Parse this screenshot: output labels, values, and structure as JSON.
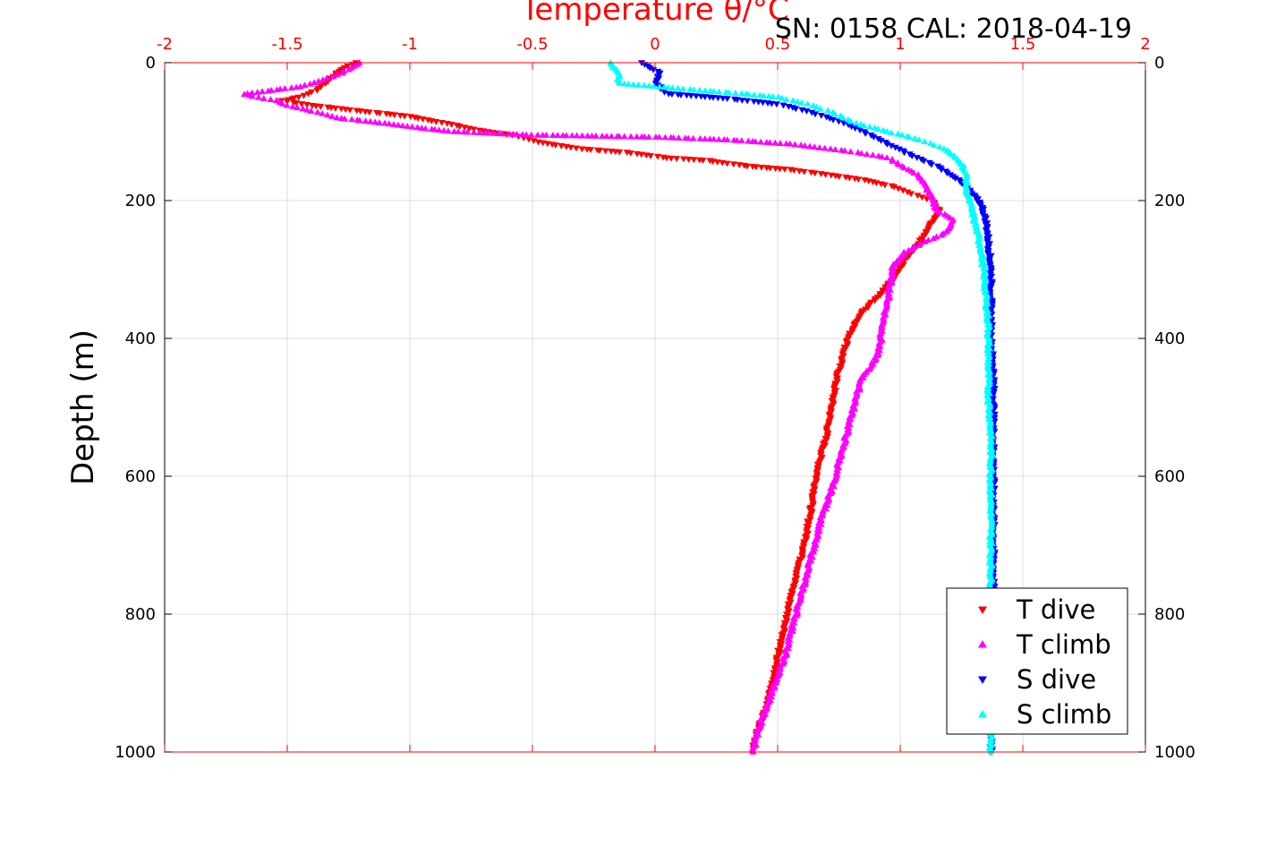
{
  "chart_data": {
    "type": "scatter",
    "title": "SN: 0158  CAL: 2018-04-19",
    "top_axis_label": "Temperature θ/°C",
    "ylabel": "Depth (m)",
    "xlim": [
      -2,
      2
    ],
    "ylim": [
      1000,
      0
    ],
    "x_ticks": [
      "-2",
      "-1.5",
      "-1",
      "-0.5",
      "0",
      "0.5",
      "1",
      "1.5",
      "2"
    ],
    "y_ticks": [
      "0",
      "200",
      "400",
      "600",
      "800",
      "1000"
    ],
    "y_ticks_right": [
      "0",
      "200",
      "400",
      "600",
      "800",
      "1000"
    ],
    "grid": true,
    "legend_position": "bottom-right",
    "colors": {
      "axis_top": "#ff0000",
      "axis_other": "#000000",
      "grid": "#dcdcdc"
    },
    "series": [
      {
        "name": "T dive",
        "color": "#ff0000",
        "marker": "triangle-down",
        "points": [
          [
            -1.22,
            0
          ],
          [
            -1.28,
            10
          ],
          [
            -1.33,
            25
          ],
          [
            -1.38,
            40
          ],
          [
            -1.45,
            50
          ],
          [
            -1.52,
            55
          ],
          [
            -1.4,
            62
          ],
          [
            -1.2,
            70
          ],
          [
            -1.0,
            78
          ],
          [
            -0.85,
            88
          ],
          [
            -0.72,
            98
          ],
          [
            -0.58,
            105
          ],
          [
            -0.48,
            115
          ],
          [
            -0.3,
            125
          ],
          [
            -0.12,
            130
          ],
          [
            0.05,
            138
          ],
          [
            0.22,
            142
          ],
          [
            0.38,
            150
          ],
          [
            0.55,
            155
          ],
          [
            0.7,
            162
          ],
          [
            0.85,
            170
          ],
          [
            0.98,
            180
          ],
          [
            1.05,
            190
          ],
          [
            1.13,
            200
          ],
          [
            1.16,
            215
          ],
          [
            1.12,
            235
          ],
          [
            1.08,
            260
          ],
          [
            1.02,
            285
          ],
          [
            0.98,
            310
          ],
          [
            0.92,
            335
          ],
          [
            0.85,
            360
          ],
          [
            0.8,
            390
          ],
          [
            0.77,
            420
          ],
          [
            0.74,
            460
          ],
          [
            0.72,
            500
          ],
          [
            0.7,
            540
          ],
          [
            0.67,
            580
          ],
          [
            0.65,
            620
          ],
          [
            0.63,
            660
          ],
          [
            0.61,
            700
          ],
          [
            0.58,
            740
          ],
          [
            0.55,
            780
          ],
          [
            0.53,
            820
          ],
          [
            0.5,
            860
          ],
          [
            0.48,
            900
          ],
          [
            0.45,
            940
          ],
          [
            0.42,
            970
          ],
          [
            0.4,
            995
          ]
        ]
      },
      {
        "name": "T climb",
        "color": "#ff00ff",
        "marker": "triangle-up",
        "points": [
          [
            -1.2,
            0
          ],
          [
            -1.28,
            15
          ],
          [
            -1.35,
            25
          ],
          [
            -1.45,
            35
          ],
          [
            -1.6,
            42
          ],
          [
            -1.68,
            46
          ],
          [
            -1.55,
            55
          ],
          [
            -1.5,
            62
          ],
          [
            -1.38,
            72
          ],
          [
            -1.3,
            80
          ],
          [
            -1.1,
            88
          ],
          [
            -0.95,
            95
          ],
          [
            -0.82,
            100
          ],
          [
            -0.5,
            105
          ],
          [
            0.0,
            108
          ],
          [
            0.3,
            112
          ],
          [
            0.55,
            118
          ],
          [
            0.78,
            128
          ],
          [
            0.95,
            138
          ],
          [
            1.08,
            165
          ],
          [
            1.12,
            190
          ],
          [
            1.15,
            215
          ],
          [
            1.22,
            228
          ],
          [
            1.18,
            248
          ],
          [
            1.1,
            260
          ],
          [
            1.02,
            275
          ],
          [
            0.97,
            295
          ],
          [
            0.96,
            320
          ],
          [
            0.95,
            345
          ],
          [
            0.93,
            375
          ],
          [
            0.92,
            405
          ],
          [
            0.9,
            430
          ],
          [
            0.84,
            460
          ],
          [
            0.81,
            500
          ],
          [
            0.78,
            540
          ],
          [
            0.75,
            580
          ],
          [
            0.72,
            620
          ],
          [
            0.68,
            660
          ],
          [
            0.65,
            700
          ],
          [
            0.62,
            740
          ],
          [
            0.59,
            780
          ],
          [
            0.56,
            820
          ],
          [
            0.53,
            860
          ],
          [
            0.49,
            900
          ],
          [
            0.45,
            940
          ],
          [
            0.42,
            970
          ],
          [
            0.4,
            1000
          ]
        ]
      },
      {
        "name": "S dive",
        "color": "#0000ff",
        "marker": "triangle-down",
        "points": [
          [
            -0.05,
            0
          ],
          [
            0.02,
            15
          ],
          [
            0.0,
            30
          ],
          [
            0.05,
            45
          ],
          [
            0.3,
            52
          ],
          [
            0.5,
            60
          ],
          [
            0.62,
            70
          ],
          [
            0.75,
            85
          ],
          [
            0.85,
            100
          ],
          [
            0.95,
            118
          ],
          [
            1.05,
            135
          ],
          [
            1.15,
            150
          ],
          [
            1.22,
            165
          ],
          [
            1.28,
            185
          ],
          [
            1.33,
            205
          ],
          [
            1.35,
            230
          ],
          [
            1.36,
            260
          ],
          [
            1.37,
            300
          ],
          [
            1.37,
            340
          ],
          [
            1.37,
            400
          ],
          [
            1.38,
            450
          ],
          [
            1.38,
            500
          ],
          [
            1.38,
            550
          ],
          [
            1.38,
            600
          ],
          [
            1.38,
            650
          ],
          [
            1.38,
            700
          ],
          [
            1.38,
            750
          ],
          [
            1.38,
            800
          ],
          [
            1.38,
            850
          ],
          [
            1.38,
            900
          ],
          [
            1.37,
            950
          ],
          [
            1.37,
            1000
          ]
        ]
      },
      {
        "name": "S climb",
        "color": "#00ffff",
        "marker": "triangle-up",
        "points": [
          [
            -0.18,
            0
          ],
          [
            -0.15,
            15
          ],
          [
            -0.15,
            30
          ],
          [
            0.18,
            40
          ],
          [
            0.35,
            45
          ],
          [
            0.5,
            50
          ],
          [
            0.62,
            60
          ],
          [
            0.72,
            72
          ],
          [
            0.82,
            88
          ],
          [
            0.95,
            100
          ],
          [
            1.08,
            112
          ],
          [
            1.18,
            125
          ],
          [
            1.25,
            145
          ],
          [
            1.27,
            165
          ],
          [
            1.27,
            185
          ],
          [
            1.29,
            210
          ],
          [
            1.31,
            240
          ],
          [
            1.33,
            270
          ],
          [
            1.34,
            300
          ],
          [
            1.35,
            340
          ],
          [
            1.36,
            380
          ],
          [
            1.36,
            420
          ],
          [
            1.36,
            480
          ],
          [
            1.37,
            540
          ],
          [
            1.37,
            600
          ],
          [
            1.37,
            660
          ],
          [
            1.37,
            720
          ],
          [
            1.37,
            780
          ],
          [
            1.37,
            840
          ],
          [
            1.37,
            900
          ],
          [
            1.37,
            960
          ],
          [
            1.37,
            1000
          ]
        ]
      }
    ]
  }
}
